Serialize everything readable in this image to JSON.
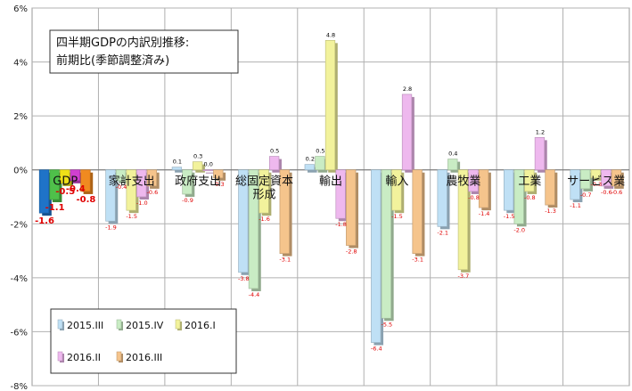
{
  "chart_data": {
    "type": "bar",
    "title_lines": [
      "四半期GDPの内訳別推移:",
      "前期比(季節調整済み)"
    ],
    "y_ticks": [
      "6%",
      "4%",
      "2%",
      "0%",
      "-2%",
      "-4%",
      "-6%",
      "-8%"
    ],
    "ylim": [
      -8,
      6
    ],
    "grid": true,
    "legend_position": "bottom-left",
    "categories": [
      [
        "GDP"
      ],
      [
        "家計支出"
      ],
      [
        "政府支出"
      ],
      [
        "総固定資本",
        "形成"
      ],
      [
        "輸出"
      ],
      [
        "輸入"
      ],
      [
        "農牧業"
      ],
      [
        "工業"
      ],
      [
        "サービス業"
      ]
    ],
    "series": [
      {
        "name": "2015.III",
        "color": "#bfe0f5",
        "gdp_color": "#1f73c8",
        "values": [
          -1.6,
          -1.9,
          0.1,
          -3.8,
          0.2,
          -6.4,
          -2.1,
          -1.5,
          -1.1
        ]
      },
      {
        "name": "2015.IV",
        "color": "#c9ecc4",
        "gdp_color": "#4fc04a",
        "values": [
          -1.1,
          -0.4,
          -0.9,
          -4.4,
          0.5,
          -5.5,
          0.4,
          -2.0,
          -0.7
        ]
      },
      {
        "name": "2016.I",
        "color": "#f2f29c",
        "gdp_color": "#f0e018",
        "values": [
          -0.5,
          -1.5,
          0.3,
          -1.6,
          4.8,
          -1.5,
          -3.7,
          -0.8,
          -0.3
        ]
      },
      {
        "name": "2016.II",
        "color": "#eeb8ee",
        "gdp_color": "#d040d0",
        "values": [
          -0.4,
          -1.0,
          0.0,
          0.5,
          -1.8,
          2.8,
          -0.8,
          1.2,
          -0.6
        ]
      },
      {
        "name": "2016.III",
        "color": "#f5c48c",
        "gdp_color": "#f08a20",
        "values": [
          -0.8,
          -0.6,
          -0.3,
          -3.1,
          -2.8,
          -3.1,
          -1.4,
          -1.3,
          -0.6
        ]
      }
    ],
    "data_labels": [
      [
        "-1.6",
        "-1.1",
        "-0.5",
        "-0.4",
        "-0.8"
      ],
      [
        "-1.9",
        "-0.4",
        "-1.5",
        "-1.0",
        "-0.6"
      ],
      [
        "0.1",
        "-0.9",
        "0.3",
        "0.0",
        "-0.3"
      ],
      [
        "-3.8",
        "-4.4",
        "-1.6",
        "0.5",
        "-3.1"
      ],
      [
        "0.2",
        "0.5",
        "4.8",
        "-1.8",
        "-2.8"
      ],
      [
        "-6.4",
        "-5.5",
        "-1.5",
        "2.8",
        "-3.1"
      ],
      [
        "-2.1",
        "0.4",
        "-3.7",
        "-0.8",
        "-1.4"
      ],
      [
        "-1.5",
        "-2.0",
        "-0.8",
        "1.2",
        "-1.3"
      ],
      [
        "-1.1",
        "-0.7",
        "-0.3",
        "-0.6",
        "-0.6"
      ]
    ],
    "label_color": "#e00000",
    "positive_label_color": "#000000"
  }
}
